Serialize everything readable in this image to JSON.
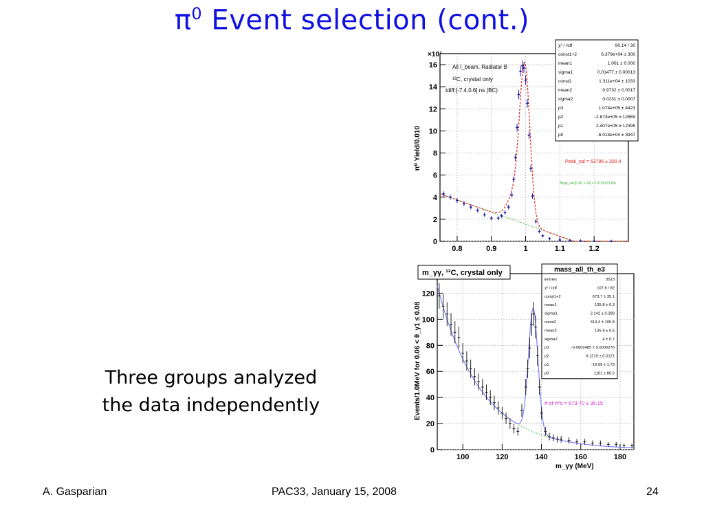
{
  "slide": {
    "title_symbol": "π",
    "title_sup": "0",
    "title_text": " Event selection (cont.)",
    "caption_line1": "Three groups analyzed",
    "caption_line2": "the data independently",
    "footer_left": "A. Gasparian",
    "footer_center": "PAC33, January 15, 2008",
    "footer_right": "24"
  },
  "chart_data": [
    {
      "type": "scatter",
      "title": "",
      "ylabel": "π⁰ Yield/0.010",
      "multiplier_label": "×10³",
      "xlabel": "",
      "xlim": [
        0.75,
        1.3
      ],
      "ylim": [
        0,
        17
      ],
      "x_ticks": [
        "0.8",
        "0.9",
        "1",
        "1.1",
        "1.2"
      ],
      "y_ticks": [
        "0",
        "2",
        "4",
        "6",
        "8",
        "10",
        "12",
        "14",
        "16"
      ],
      "annotations": [
        "All I_beam, Radiator B",
        "¹²C, crystal only",
        "tdiff:[-7.4,0.6] ns (BC)"
      ],
      "peak_label": "Peak_cal = 63786 ± 300.4",
      "bkg_label": "Bkgd_cal:[0.90,1.10] = 19725±23.8%",
      "stats": [
        [
          "χ² / ndf",
          "90.14 / 30"
        ],
        [
          "const1+2",
          "6.379e+04 ± 300"
        ],
        [
          "mean1",
          "1.001 ± 0.000"
        ],
        [
          "sigma1",
          "0.01477 ± 0.00013"
        ],
        [
          "const2",
          "1.311e+04 ± 1033"
        ],
        [
          "mean2",
          "0.9732 ± 0.0017"
        ],
        [
          "sigma2",
          "0.0231 ± 0.0007"
        ],
        [
          "p3",
          "1.074e+05 ± 4423"
        ],
        [
          "p2",
          "-2.873e+05 ± 12869"
        ],
        [
          "p1",
          "2.407e+05 ± 12395"
        ],
        [
          "p0",
          "-6.013e+04 ± 3947"
        ]
      ],
      "data": {
        "x": [
          0.76,
          0.78,
          0.8,
          0.82,
          0.84,
          0.86,
          0.88,
          0.9,
          0.92,
          0.93,
          0.94,
          0.95,
          0.96,
          0.965,
          0.97,
          0.975,
          0.98,
          0.985,
          0.99,
          0.995,
          1.0,
          1.005,
          1.01,
          1.015,
          1.02,
          1.03,
          1.04,
          1.05,
          1.07,
          1.1,
          1.13,
          1.16,
          1.2,
          1.25
        ],
        "y": [
          4.3,
          4.0,
          3.7,
          3.4,
          3.1,
          2.8,
          2.4,
          2.1,
          2.1,
          2.3,
          2.6,
          3.1,
          4.2,
          5.6,
          7.6,
          10.3,
          13.3,
          15.4,
          15.9,
          15.7,
          14.6,
          12.5,
          9.6,
          6.6,
          4.1,
          1.8,
          0.9,
          0.5,
          0.25,
          0.12,
          0.06,
          0.04,
          0.02,
          0.0
        ]
      }
    },
    {
      "type": "scatter",
      "title": "m_γγ, ¹²C, crystal only",
      "ylabel": "Events/1.0MeV for  0.06 < θ_γ1 ≤  0.08",
      "xlabel": "m_γγ (MeV)",
      "xlim": [
        87,
        187
      ],
      "ylim": [
        0,
        135
      ],
      "x_ticks": [
        "100",
        "120",
        "140",
        "160",
        "180"
      ],
      "y_ticks": [
        "0",
        "20",
        "40",
        "60",
        "80",
        "100",
        "120"
      ],
      "stats_title": "mass_all_th_e3",
      "peak_label": "# of π⁰s = 673.70 ± 35.15",
      "stats": [
        [
          "Entries",
          "3523"
        ],
        [
          "χ² / ndf",
          "107.6 / 82"
        ],
        [
          "const1+2",
          "673.7 ± 35.1"
        ],
        [
          "mean1",
          "135.8 ± 0.3"
        ],
        [
          "sigma1",
          "2.142 ± 0.288"
        ],
        [
          "const2",
          "314.4 ± 105.8"
        ],
        [
          "mean2",
          "135.9 ± 0.6"
        ],
        [
          "sigma2",
          "4 ± 0.7"
        ],
        [
          "p3",
          "-0.0002485 ± 0.0000276"
        ],
        [
          "p2",
          "0.1219 ± 0.0121"
        ],
        [
          "p1",
          "-19.99 ± 1.73"
        ],
        [
          "p0",
          "1101 ± 80.6"
        ]
      ],
      "data": {
        "x": [
          88,
          90,
          92,
          94,
          96,
          98,
          100,
          102,
          104,
          106,
          108,
          110,
          112,
          114,
          116,
          118,
          120,
          122,
          124,
          126,
          128,
          130,
          132,
          133,
          134,
          135,
          136,
          137,
          138,
          139,
          140,
          142,
          144,
          146,
          148,
          150,
          154,
          158,
          162,
          166,
          170,
          174,
          178,
          182,
          186
        ],
        "y": [
          118,
          110,
          104,
          96,
          90,
          86,
          74,
          68,
          62,
          56,
          52,
          48,
          44,
          40,
          36,
          32,
          28,
          24,
          20,
          16,
          14,
          30,
          48,
          62,
          78,
          96,
          104,
          94,
          72,
          48,
          28,
          14,
          10,
          9,
          8,
          8,
          7,
          6,
          6,
          5,
          5,
          4,
          4,
          3,
          3
        ]
      }
    }
  ]
}
